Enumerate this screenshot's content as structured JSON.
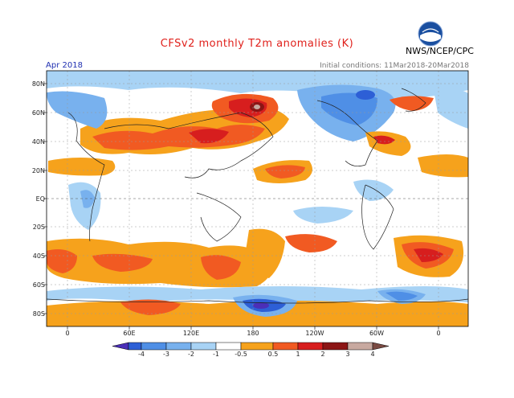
{
  "header": {
    "title": "CFSv2 monthly T2m anomalies (K)",
    "agency": "NWS/NCEP/CPC",
    "month": "Apr 2018",
    "init": "Initial conditions: 11Mar2018-20Mar2018",
    "logo_text": "NOAA"
  },
  "axes": {
    "lat_labels": [
      "80N",
      "60N",
      "40N",
      "20N",
      "EQ",
      "20S",
      "40S",
      "60S",
      "80S"
    ],
    "lon_labels": [
      "0",
      "60E",
      "120E",
      "180",
      "120W",
      "60W",
      "0"
    ]
  },
  "colorbar": {
    "labels": [
      "-4",
      "-3",
      "-2",
      "-1",
      "-0.5",
      "0.5",
      "1",
      "2",
      "3",
      "4"
    ],
    "colors": [
      "#4b2fb8",
      "#2d5fd6",
      "#4f8fe6",
      "#78b1ee",
      "#a8d3f5",
      "#ffffff",
      "#f6a21c",
      "#f15a22",
      "#d71e1e",
      "#8c1515",
      "#c8a9a0",
      "#7a4a42"
    ]
  },
  "colors": {
    "warm1": "#f6a21c",
    "warm2": "#f15a22",
    "warm3": "#d71e1e",
    "warm4": "#8c1515",
    "cool1": "#a8d3f5",
    "cool2": "#78b1ee",
    "cool3": "#4f8fe6",
    "cool4": "#2d5fd6",
    "cool5": "#4b2fb8"
  }
}
